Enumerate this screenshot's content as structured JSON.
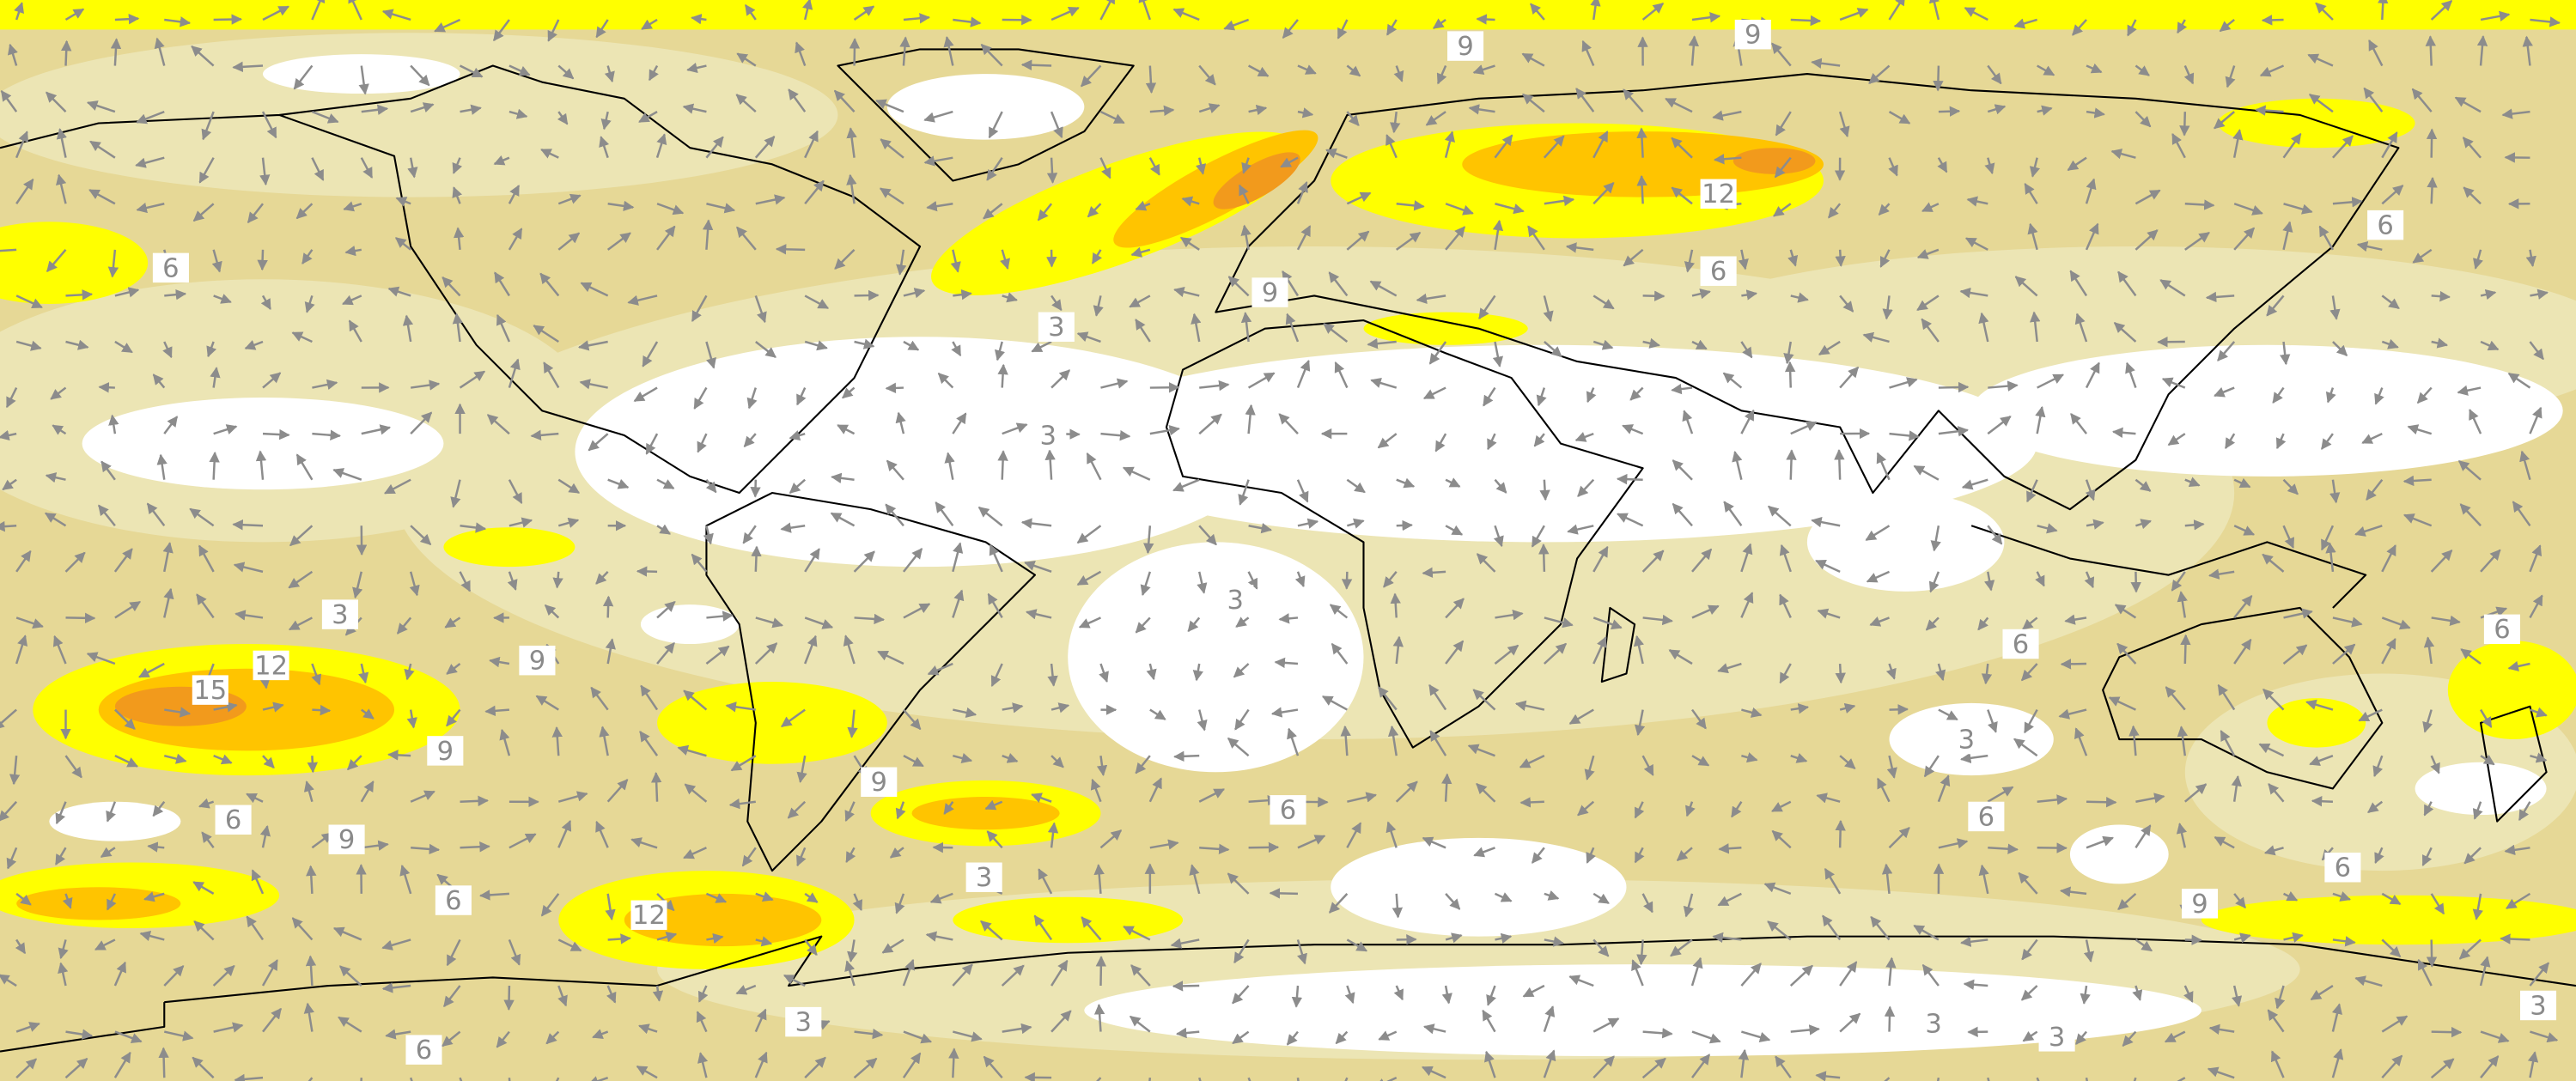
{
  "contour_labels": [
    9,
    9,
    6,
    12,
    6,
    9,
    6,
    3,
    3,
    3,
    3,
    12,
    15,
    9,
    6,
    6,
    9,
    3,
    9,
    6,
    6,
    6,
    9,
    6,
    3,
    12,
    6,
    9,
    3,
    3,
    3,
    6,
    3
  ]
}
